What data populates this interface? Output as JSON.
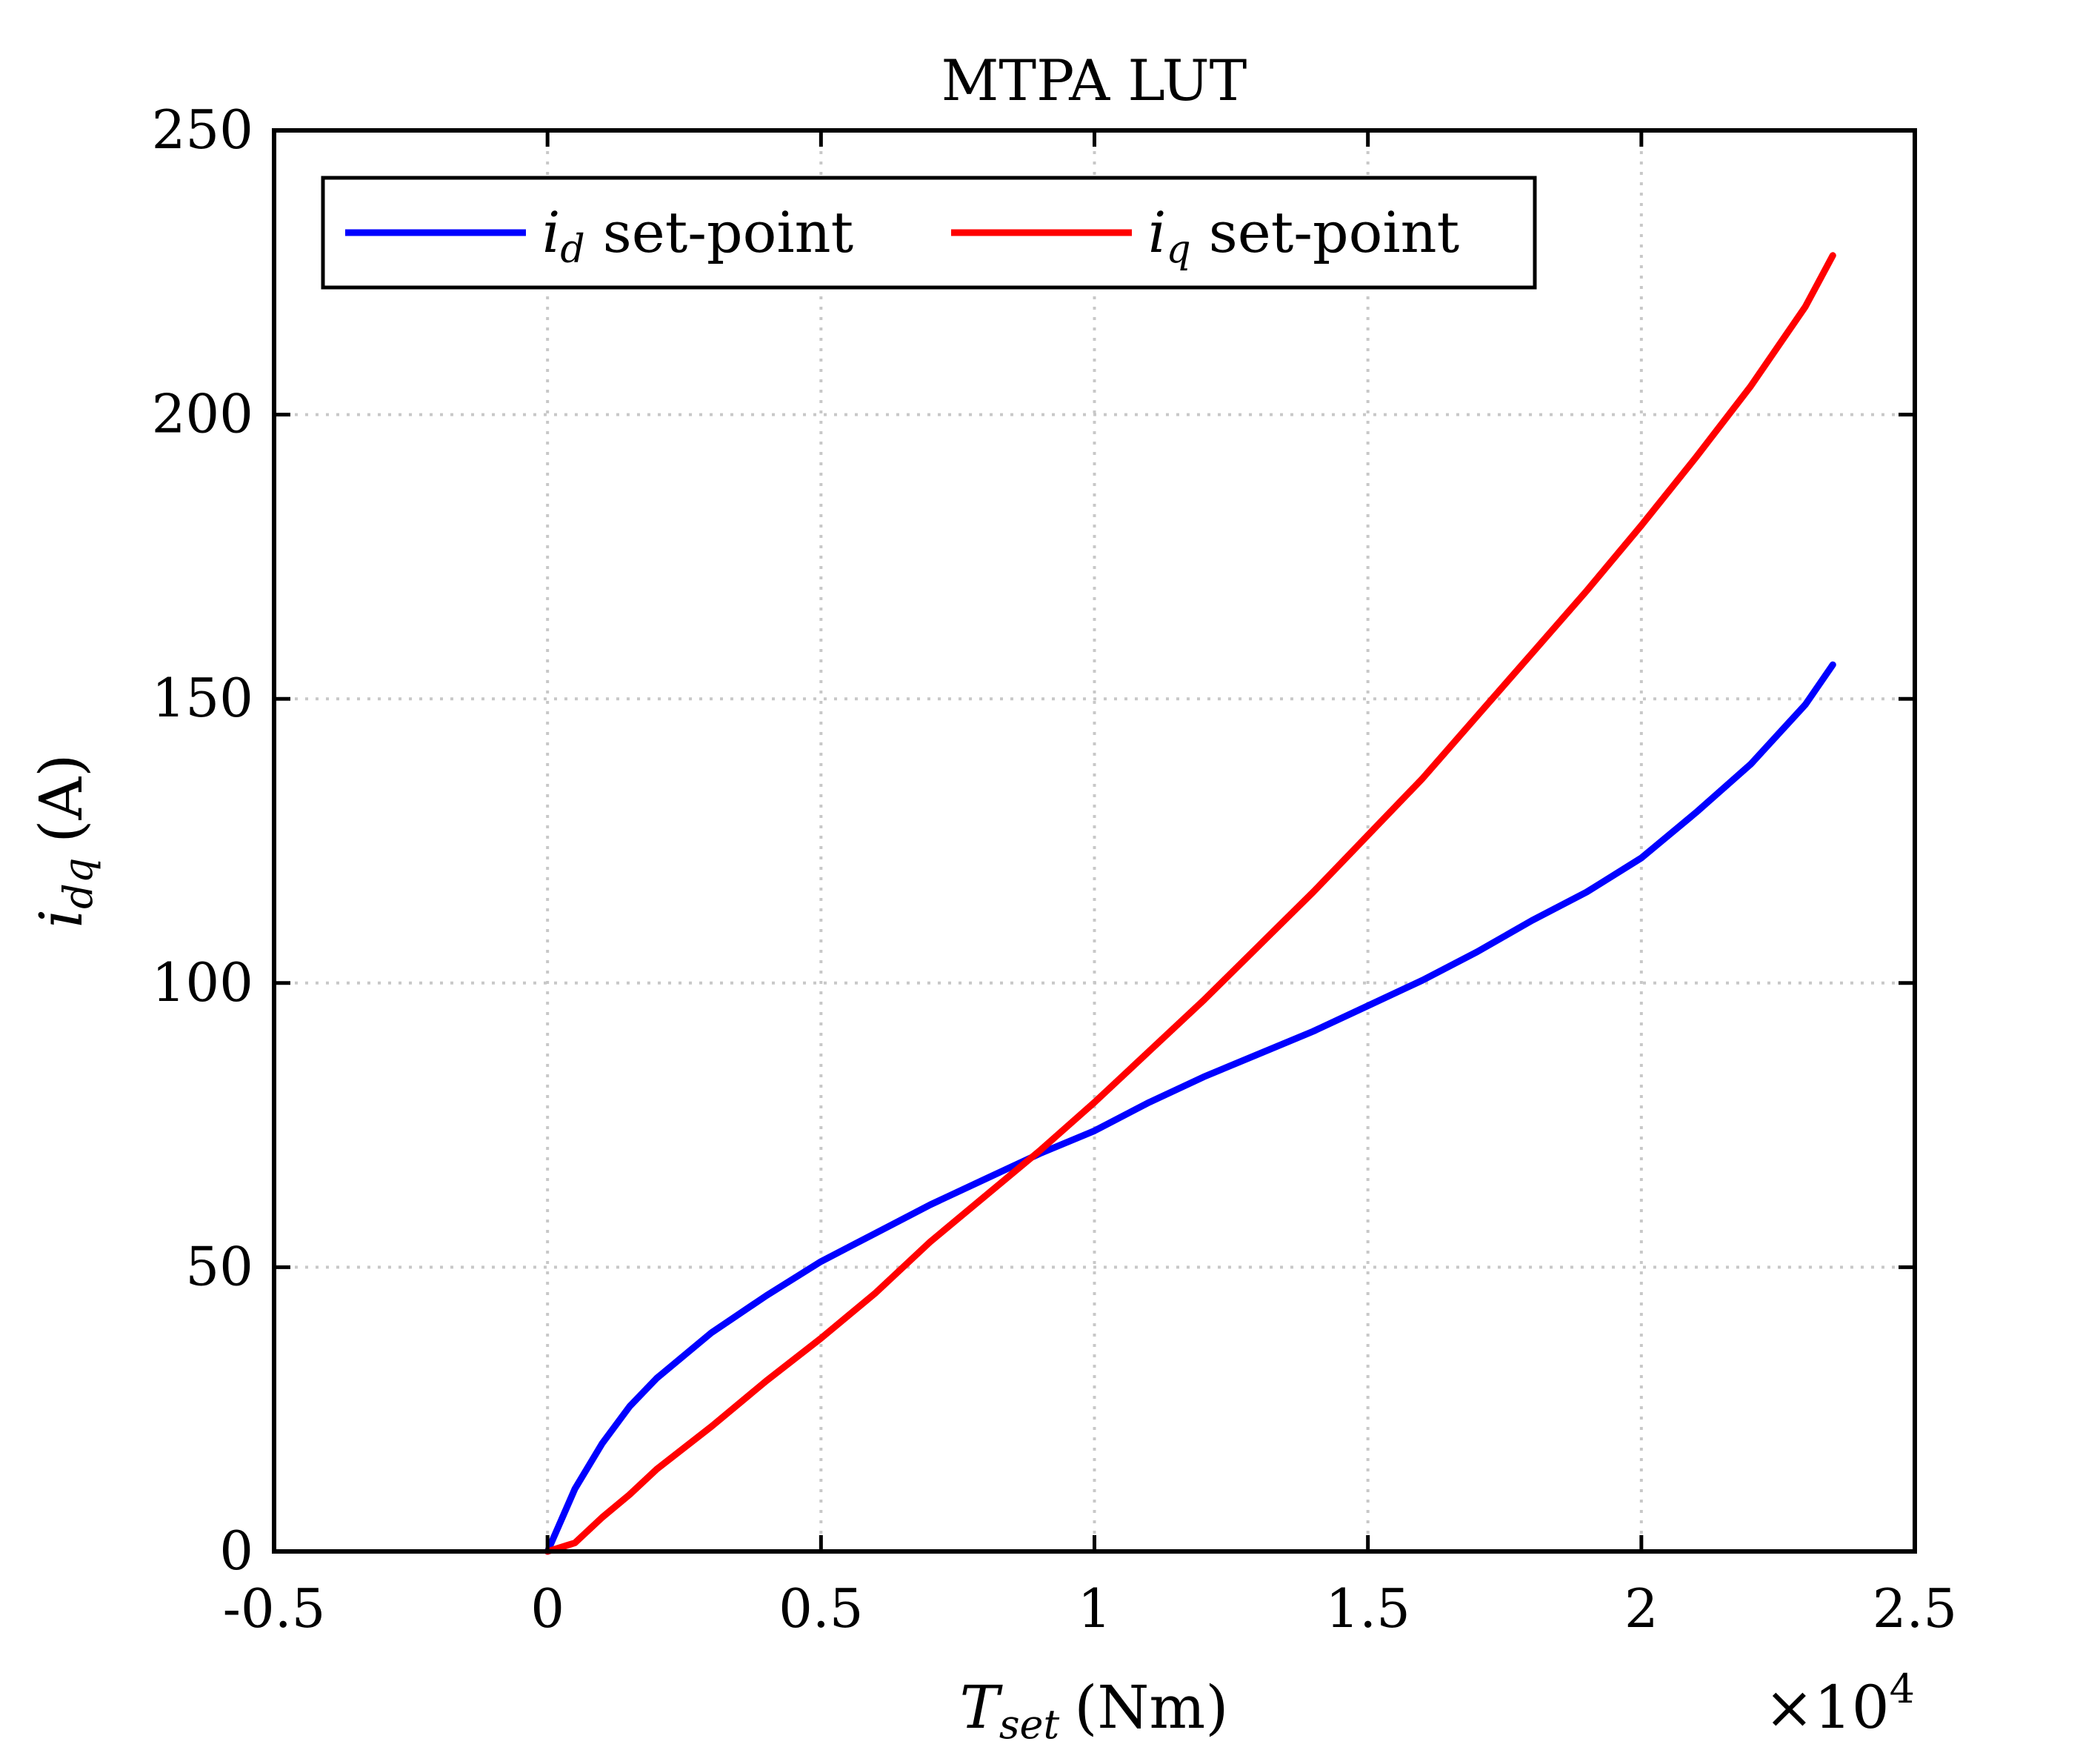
{
  "chart_data": {
    "type": "line",
    "title": "MTPA LUT",
    "xlabel": {
      "main": "T",
      "sub": "set",
      "unit": "(Nm)"
    },
    "ylabel": {
      "main": "i",
      "sub": "dq",
      "unit": "(A)"
    },
    "x_multiplier": "×10",
    "x_multiplier_exp": "4",
    "xlim": [
      -0.5,
      2.5
    ],
    "ylim": [
      0,
      250
    ],
    "xticks": [
      -0.5,
      0,
      0.5,
      1,
      1.5,
      2,
      2.5
    ],
    "xtick_labels": [
      "-0.5",
      "0",
      "0.5",
      "1",
      "1.5",
      "2",
      "2.5"
    ],
    "yticks": [
      0,
      50,
      100,
      150,
      200,
      250
    ],
    "ytick_labels": [
      "0",
      "50",
      "100",
      "150",
      "200",
      "250"
    ],
    "grid": true,
    "legend": {
      "placement": "top-left",
      "orientation": "horizontal",
      "suffix": " set-point"
    },
    "series": [
      {
        "name": "i_d set-point",
        "symbol": "i",
        "subscript": "d",
        "color": "#0000ff",
        "x": [
          0,
          0.05,
          0.1,
          0.15,
          0.2,
          0.3,
          0.4,
          0.5,
          0.6,
          0.7,
          0.8,
          0.9,
          1.0,
          1.1,
          1.2,
          1.3,
          1.4,
          1.5,
          1.6,
          1.7,
          1.8,
          1.9,
          2.0,
          2.1,
          2.2,
          2.3,
          2.35
        ],
        "y": [
          0,
          11,
          19,
          25.5,
          30.5,
          38.5,
          45,
          51,
          56,
          61,
          65.5,
          70,
          74,
          79,
          83.5,
          87.5,
          91.5,
          96,
          100.5,
          105.5,
          111,
          116,
          122,
          130,
          138.5,
          149,
          156
        ]
      },
      {
        "name": "i_q set-point",
        "symbol": "i",
        "subscript": "q",
        "color": "#ff0000",
        "x": [
          0,
          0.05,
          0.1,
          0.15,
          0.2,
          0.3,
          0.4,
          0.5,
          0.6,
          0.7,
          0.8,
          0.9,
          1.0,
          1.1,
          1.2,
          1.3,
          1.4,
          1.5,
          1.6,
          1.7,
          1.8,
          1.9,
          2.0,
          2.1,
          2.2,
          2.3,
          2.35
        ],
        "y": [
          0,
          1.5,
          6,
          10,
          14.5,
          22,
          30,
          37.5,
          45.5,
          54.5,
          62.5,
          70.5,
          79,
          88,
          97,
          106.5,
          116,
          126,
          136,
          147,
          158,
          169,
          180.5,
          192.5,
          205,
          219,
          228
        ]
      }
    ]
  }
}
